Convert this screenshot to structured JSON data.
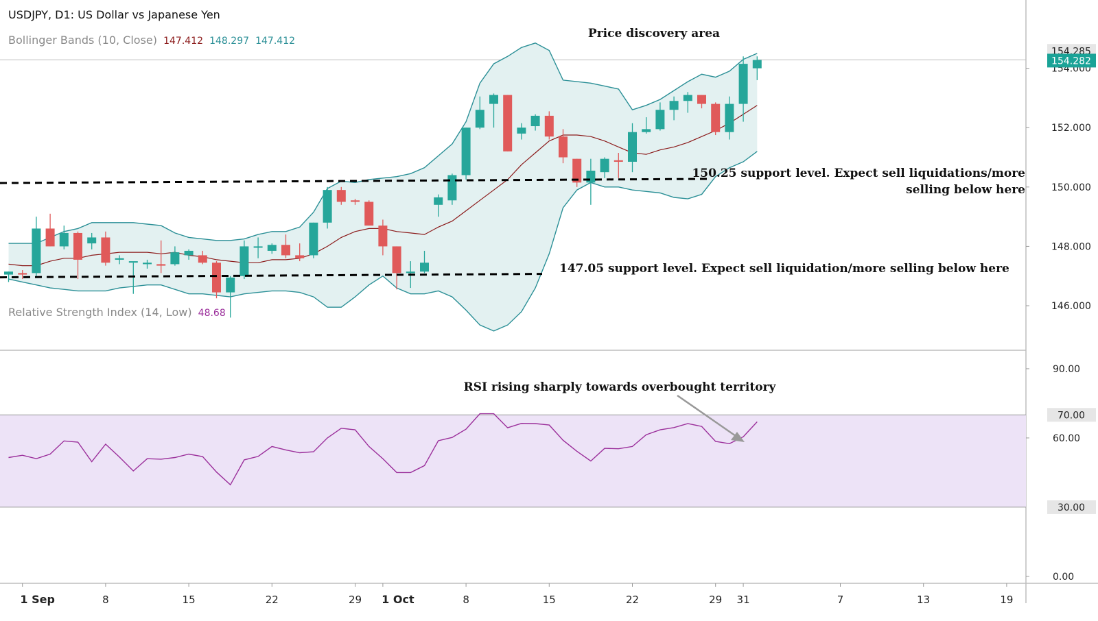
{
  "header": {
    "symbol": "USDJPY, D1: US Dollar vs Japanese Yen",
    "bb_label": "Bollinger Bands (10, Close)",
    "bb_values": [
      "147.412",
      "148.297",
      "147.412"
    ],
    "rsi_label": "Relative Strength Index (14, Low)",
    "rsi_value": "48.68"
  },
  "colors": {
    "up": "#26a69a",
    "down": "#e05a5a",
    "bb_band": "#2a8f96",
    "bb_fill": "#e3f1f1",
    "bb_mid": "#8b1a1a",
    "rsi_line": "#9b2f9b",
    "rsi_zone": "#ede3f7",
    "support_line": "#000000",
    "price_tag": "#1aa397"
  },
  "chart_data": [
    {
      "type": "candlestick",
      "title": "USDJPY, D1: US Dollar vs Japanese Yen",
      "ylim": [
        144.5,
        156.3
      ],
      "y_ticks": [
        "146.000",
        "148.000",
        "150.000",
        "152.000",
        "154.000"
      ],
      "price_labels": {
        "previous_close": "154.285",
        "last": "154.282"
      },
      "x_labels": [
        {
          "label": "1 Sep",
          "bold": true,
          "i": 1
        },
        {
          "label": "8",
          "i": 7
        },
        {
          "label": "15",
          "i": 13
        },
        {
          "label": "22",
          "i": 19
        },
        {
          "label": "29",
          "i": 25
        },
        {
          "label": "1 Oct",
          "bold": true,
          "i": 27
        },
        {
          "label": "8",
          "i": 33
        },
        {
          "label": "15",
          "i": 39
        },
        {
          "label": "22",
          "i": 45
        },
        {
          "label": "29",
          "i": 51
        },
        {
          "label": "31",
          "i": 53
        },
        {
          "label": "7",
          "i": 60
        },
        {
          "label": "13",
          "i": 66
        },
        {
          "label": "19",
          "i": 72
        }
      ],
      "candles": [
        {
          "o": 147.05,
          "h": 147.15,
          "l": 146.8,
          "c": 147.15
        },
        {
          "o": 147.1,
          "h": 147.2,
          "l": 146.9,
          "c": 147.05
        },
        {
          "o": 147.1,
          "h": 149.0,
          "l": 147.0,
          "c": 148.6
        },
        {
          "o": 148.6,
          "h": 149.1,
          "l": 148.0,
          "c": 148.0
        },
        {
          "o": 148.0,
          "h": 148.7,
          "l": 147.9,
          "c": 148.45
        },
        {
          "o": 148.45,
          "h": 148.5,
          "l": 146.9,
          "c": 147.55
        },
        {
          "o": 148.1,
          "h": 148.45,
          "l": 147.9,
          "c": 148.3
        },
        {
          "o": 148.3,
          "h": 148.5,
          "l": 147.35,
          "c": 147.45
        },
        {
          "o": 147.55,
          "h": 147.7,
          "l": 147.4,
          "c": 147.6
        },
        {
          "o": 147.45,
          "h": 147.45,
          "l": 146.4,
          "c": 147.5
        },
        {
          "o": 147.4,
          "h": 147.55,
          "l": 147.25,
          "c": 147.45
        },
        {
          "o": 147.4,
          "h": 148.2,
          "l": 147.1,
          "c": 147.35
        },
        {
          "o": 147.4,
          "h": 148.0,
          "l": 147.35,
          "c": 147.8
        },
        {
          "o": 147.7,
          "h": 147.9,
          "l": 147.55,
          "c": 147.85
        },
        {
          "o": 147.7,
          "h": 147.85,
          "l": 147.4,
          "c": 147.45
        },
        {
          "o": 147.45,
          "h": 147.5,
          "l": 146.25,
          "c": 146.45
        },
        {
          "o": 146.45,
          "h": 147.0,
          "l": 145.6,
          "c": 146.95
        },
        {
          "o": 147.0,
          "h": 148.2,
          "l": 146.9,
          "c": 148.0
        },
        {
          "o": 148.0,
          "h": 148.3,
          "l": 147.6,
          "c": 148.0
        },
        {
          "o": 147.85,
          "h": 148.1,
          "l": 147.75,
          "c": 148.05
        },
        {
          "o": 148.05,
          "h": 148.4,
          "l": 147.6,
          "c": 147.7
        },
        {
          "o": 147.7,
          "h": 148.1,
          "l": 147.5,
          "c": 147.6
        },
        {
          "o": 147.7,
          "h": 148.8,
          "l": 147.6,
          "c": 148.8
        },
        {
          "o": 148.8,
          "h": 150.0,
          "l": 148.6,
          "c": 149.9
        },
        {
          "o": 149.9,
          "h": 150.0,
          "l": 149.4,
          "c": 149.5
        },
        {
          "o": 149.55,
          "h": 149.6,
          "l": 149.4,
          "c": 149.5
        },
        {
          "o": 149.5,
          "h": 149.55,
          "l": 148.7,
          "c": 148.7
        },
        {
          "o": 148.7,
          "h": 148.9,
          "l": 147.7,
          "c": 148.0
        },
        {
          "o": 148.0,
          "h": 148.0,
          "l": 146.55,
          "c": 147.1
        },
        {
          "o": 147.1,
          "h": 147.5,
          "l": 146.6,
          "c": 147.15
        },
        {
          "o": 147.15,
          "h": 147.85,
          "l": 147.1,
          "c": 147.45
        },
        {
          "o": 149.4,
          "h": 149.75,
          "l": 149.0,
          "c": 149.65
        },
        {
          "o": 149.55,
          "h": 150.45,
          "l": 149.4,
          "c": 150.4
        },
        {
          "o": 150.4,
          "h": 152.0,
          "l": 150.25,
          "c": 152.0
        },
        {
          "o": 152.0,
          "h": 153.05,
          "l": 151.95,
          "c": 152.6
        },
        {
          "o": 152.8,
          "h": 153.15,
          "l": 152.0,
          "c": 153.1
        },
        {
          "o": 153.1,
          "h": 153.1,
          "l": 151.2,
          "c": 151.2
        },
        {
          "o": 151.8,
          "h": 152.15,
          "l": 151.6,
          "c": 152.0
        },
        {
          "o": 152.05,
          "h": 152.45,
          "l": 151.9,
          "c": 152.4
        },
        {
          "o": 152.4,
          "h": 152.55,
          "l": 151.6,
          "c": 151.7
        },
        {
          "o": 151.7,
          "h": 151.95,
          "l": 150.8,
          "c": 151.0
        },
        {
          "o": 150.95,
          "h": 150.95,
          "l": 150.0,
          "c": 150.15
        },
        {
          "o": 150.15,
          "h": 150.95,
          "l": 149.4,
          "c": 150.55
        },
        {
          "o": 150.5,
          "h": 151.0,
          "l": 150.3,
          "c": 150.95
        },
        {
          "o": 150.9,
          "h": 151.15,
          "l": 150.3,
          "c": 150.85
        },
        {
          "o": 150.85,
          "h": 152.15,
          "l": 150.5,
          "c": 151.85
        },
        {
          "o": 151.85,
          "h": 152.35,
          "l": 151.8,
          "c": 151.95
        },
        {
          "o": 151.95,
          "h": 152.85,
          "l": 151.9,
          "c": 152.6
        },
        {
          "o": 152.6,
          "h": 153.05,
          "l": 152.25,
          "c": 152.9
        },
        {
          "o": 152.9,
          "h": 153.2,
          "l": 152.5,
          "c": 153.1
        },
        {
          "o": 153.1,
          "h": 153.1,
          "l": 152.65,
          "c": 152.8
        },
        {
          "o": 152.8,
          "h": 152.85,
          "l": 151.75,
          "c": 151.85
        },
        {
          "o": 151.85,
          "h": 153.05,
          "l": 151.6,
          "c": 152.8
        },
        {
          "o": 152.8,
          "h": 154.4,
          "l": 152.2,
          "c": 154.15
        },
        {
          "o": 154.0,
          "h": 154.4,
          "l": 153.6,
          "c": 154.28
        }
      ],
      "bollinger": {
        "upper": [
          148.1,
          148.1,
          148.1,
          148.3,
          148.5,
          148.6,
          148.8,
          148.8,
          148.8,
          148.8,
          148.75,
          148.7,
          148.45,
          148.3,
          148.25,
          148.2,
          148.2,
          148.25,
          148.4,
          148.5,
          148.5,
          148.65,
          149.15,
          149.95,
          150.2,
          150.15,
          150.25,
          150.3,
          150.35,
          150.45,
          150.65,
          151.05,
          151.45,
          152.2,
          153.5,
          154.15,
          154.4,
          154.7,
          154.85,
          154.6,
          153.6,
          153.55,
          153.5,
          153.4,
          153.3,
          152.6,
          152.75,
          152.95,
          153.25,
          153.55,
          153.8,
          153.7,
          153.9,
          154.3,
          154.5
        ],
        "middle": [
          147.4,
          147.35,
          147.35,
          147.5,
          147.6,
          147.6,
          147.7,
          147.75,
          147.8,
          147.8,
          147.8,
          147.75,
          147.8,
          147.7,
          147.65,
          147.55,
          147.5,
          147.45,
          147.45,
          147.55,
          147.55,
          147.6,
          147.75,
          148.0,
          148.3,
          148.5,
          148.6,
          148.6,
          148.5,
          148.45,
          148.4,
          148.65,
          148.85,
          149.2,
          149.55,
          149.9,
          150.25,
          150.75,
          151.15,
          151.55,
          151.75,
          151.75,
          151.7,
          151.55,
          151.35,
          151.15,
          151.1,
          151.25,
          151.35,
          151.5,
          151.7,
          151.9,
          152.15,
          152.45,
          152.75
        ],
        "lower": [
          146.9,
          146.8,
          146.7,
          146.6,
          146.55,
          146.5,
          146.5,
          146.5,
          146.6,
          146.65,
          146.7,
          146.7,
          146.55,
          146.4,
          146.4,
          146.35,
          146.3,
          146.4,
          146.45,
          146.5,
          146.5,
          146.45,
          146.3,
          145.95,
          145.95,
          146.3,
          146.7,
          147.0,
          146.6,
          146.4,
          146.4,
          146.5,
          146.3,
          145.85,
          145.35,
          145.15,
          145.35,
          145.8,
          146.6,
          147.75,
          149.3,
          149.9,
          150.15,
          150.0,
          150.0,
          149.9,
          149.85,
          149.8,
          149.65,
          149.6,
          149.75,
          150.35,
          150.65,
          150.85,
          151.2
        ]
      },
      "annotations": [
        {
          "text": "Price discovery area"
        },
        {
          "text": "150.25 support level. Expect sell liquidations/more"
        },
        {
          "text": "selling below here"
        },
        {
          "text": "147.05 support level. Expect sell liquidation/more selling below here"
        }
      ],
      "support_levels": [
        150.25,
        147.05
      ]
    },
    {
      "type": "line",
      "title": "Relative Strength Index (14, Low)",
      "ylim": [
        -3,
        98
      ],
      "y_ticks": [
        "0.00",
        "60.00",
        "90.00"
      ],
      "zone_labels": [
        "70.00",
        "30.00"
      ],
      "zone": [
        30,
        70
      ],
      "values": [
        51.5,
        52.5,
        51.0,
        53.0,
        58.7,
        58.2,
        49.7,
        57.3,
        51.7,
        45.7,
        51.0,
        50.8,
        51.5,
        53.0,
        51.9,
        45.2,
        39.7,
        50.5,
        52.0,
        56.3,
        54.8,
        53.6,
        54.0,
        60.0,
        64.2,
        63.5,
        56.3,
        51.0,
        45.0,
        45.0,
        48.0,
        58.8,
        60.2,
        63.8,
        70.5,
        70.5,
        64.4,
        66.3,
        66.2,
        65.6,
        59.0,
        54.2,
        50.0,
        55.5,
        55.3,
        56.3,
        61.4,
        63.5,
        64.5,
        66.2,
        65.0,
        58.5,
        57.5,
        60.5,
        67.0
      ],
      "annotations": [
        {
          "text": "RSI rising sharply towards overbought territory"
        }
      ]
    }
  ]
}
